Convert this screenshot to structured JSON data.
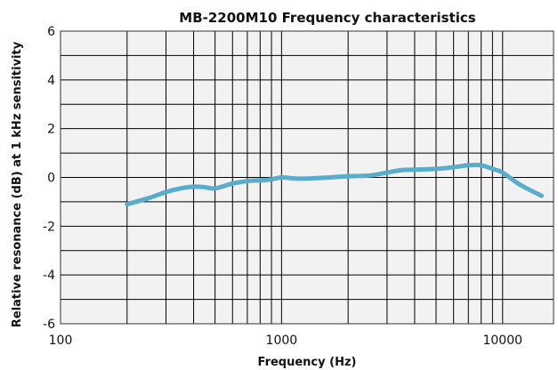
{
  "chart_data": {
    "type": "line",
    "title": "MB-2200M10 Frequency characteristics",
    "xlabel": "Frequency (Hz)",
    "ylabel": "Relative resonance (dB) at 1 kHz sensitivity",
    "x_scale": "log",
    "xlim": [
      100,
      17000
    ],
    "ylim": [
      -6,
      6
    ],
    "x_ticks": [
      100,
      1000,
      10000
    ],
    "x_tick_labels": [
      "100",
      "1000",
      "10000"
    ],
    "y_ticks": [
      -6,
      -4,
      -2,
      0,
      2,
      4,
      6
    ],
    "y_tick_labels": [
      "-6",
      "-4",
      "-2",
      "0",
      "2",
      "4",
      "6"
    ],
    "grid": true,
    "line_color": "#5aaccc",
    "grid_color": "#000000",
    "plot_background": "#f2f2f2",
    "series": [
      {
        "x": [
          200,
          250,
          300,
          350,
          400,
          450,
          500,
          600,
          700,
          800,
          900,
          1000,
          1200,
          1500,
          2000,
          2500,
          3000,
          3500,
          4000,
          5000,
          6000,
          7000,
          8000,
          9000,
          10000,
          12000,
          15000
        ],
        "y": [
          -1.1,
          -0.85,
          -0.6,
          -0.45,
          -0.38,
          -0.4,
          -0.45,
          -0.25,
          -0.15,
          -0.12,
          -0.08,
          0.0,
          -0.05,
          -0.02,
          0.05,
          0.08,
          0.2,
          0.3,
          0.32,
          0.35,
          0.42,
          0.5,
          0.5,
          0.35,
          0.2,
          -0.3,
          -0.75
        ]
      }
    ]
  }
}
